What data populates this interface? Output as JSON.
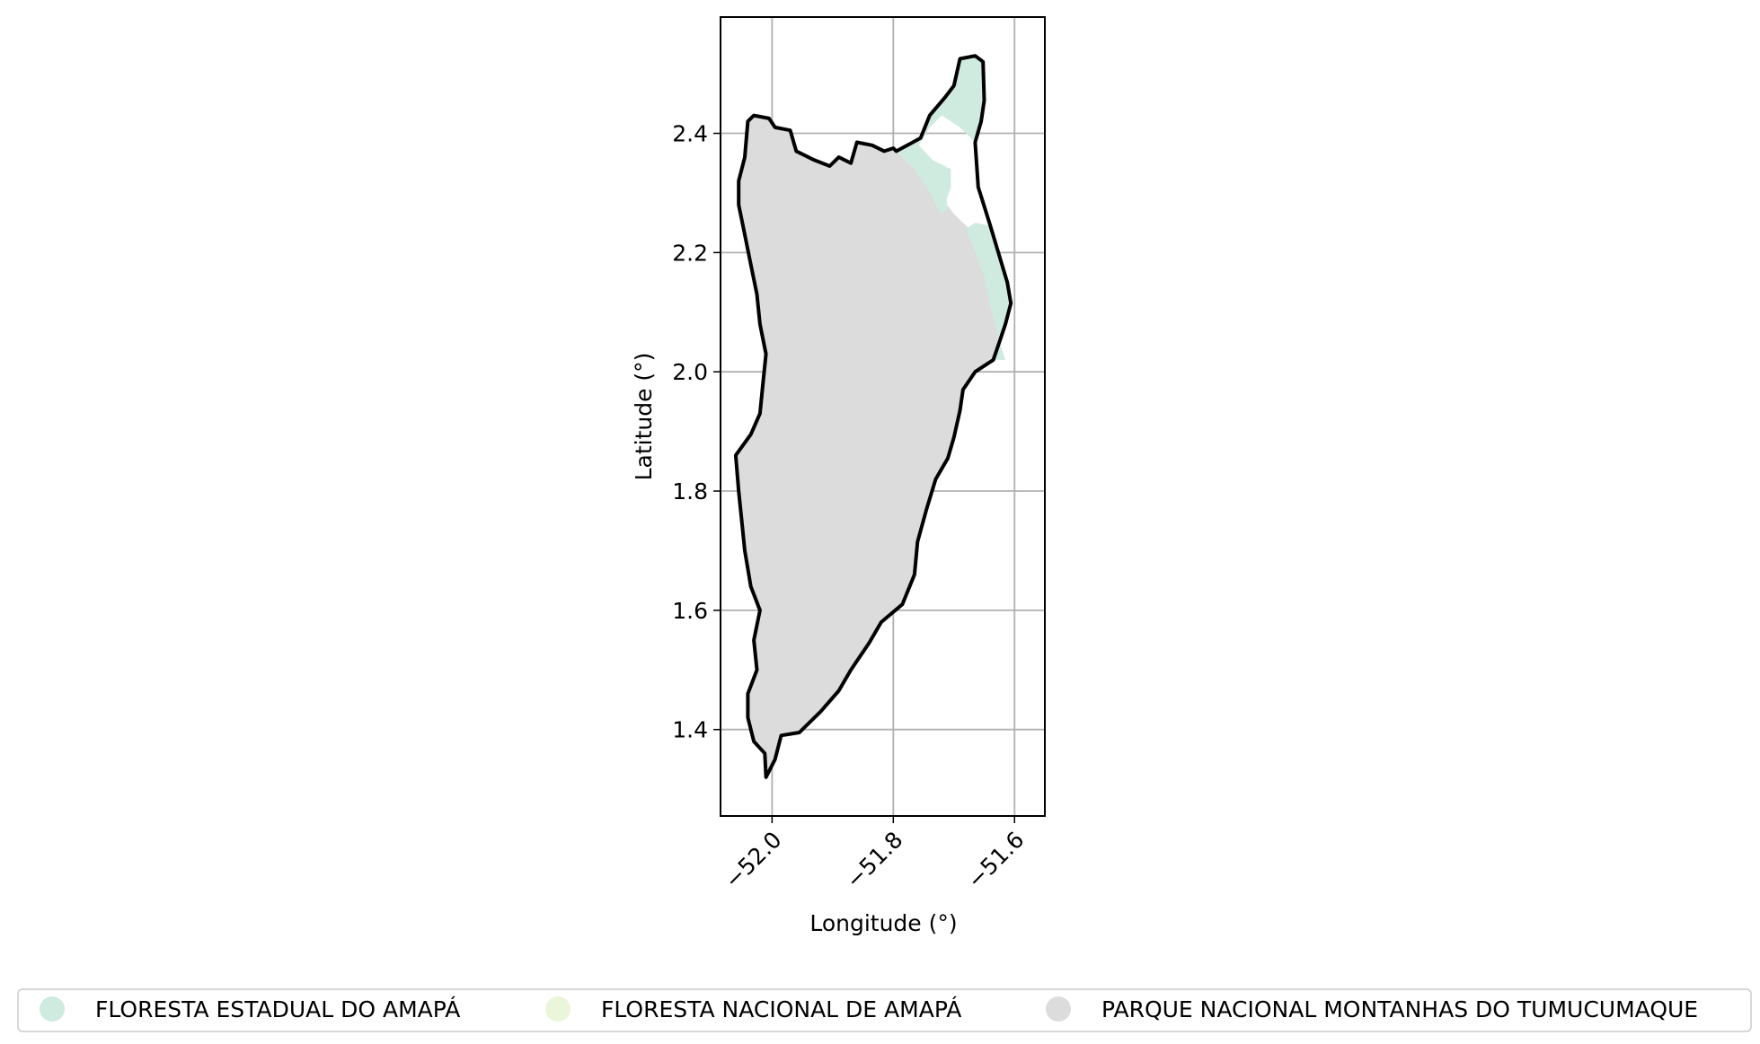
{
  "chart_data": {
    "type": "map",
    "title": "",
    "xlabel": "Longitude (°)",
    "ylabel": "Latitude (°)",
    "xlim": [
      -52.085,
      -51.55
    ],
    "ylim": [
      1.255,
      2.595
    ],
    "x_ticks": [
      {
        "value": -52.0,
        "label": "−52.0"
      },
      {
        "value": -51.8,
        "label": "−51.8"
      },
      {
        "value": -51.6,
        "label": "−51.6"
      }
    ],
    "y_ticks": [
      {
        "value": 1.4,
        "label": "1.4"
      },
      {
        "value": 1.6,
        "label": "1.6"
      },
      {
        "value": 1.8,
        "label": "1.8"
      },
      {
        "value": 2.0,
        "label": "2.0"
      },
      {
        "value": 2.2,
        "label": "2.2"
      },
      {
        "value": 2.4,
        "label": "2.4"
      }
    ],
    "grid": true,
    "legend_position": "bottom",
    "series": [
      {
        "name": "FLORESTA ESTADUAL DO AMAPÁ",
        "color": "#cfeadf",
        "polygons": [
          [
            [
              -51.795,
              2.37
            ],
            [
              -51.755,
              2.392
            ],
            [
              -51.74,
              2.43
            ],
            [
              -51.715,
              2.46
            ],
            [
              -51.7,
              2.48
            ],
            [
              -51.69,
              2.525
            ],
            [
              -51.665,
              2.53
            ],
            [
              -51.652,
              2.52
            ],
            [
              -51.65,
              2.455
            ],
            [
              -51.655,
              2.42
            ],
            [
              -51.665,
              2.385
            ],
            [
              -51.69,
              2.41
            ],
            [
              -51.72,
              2.43
            ],
            [
              -51.74,
              2.41
            ],
            [
              -51.758,
              2.38
            ],
            [
              -51.735,
              2.355
            ],
            [
              -51.705,
              2.34
            ],
            [
              -51.705,
              2.31
            ],
            [
              -51.712,
              2.29
            ],
            [
              -51.71,
              2.272
            ],
            [
              -51.722,
              2.265
            ],
            [
              -51.745,
              2.31
            ],
            [
              -51.77,
              2.345
            ]
          ],
          [
            [
              -51.68,
              2.24
            ],
            [
              -51.665,
              2.25
            ],
            [
              -51.64,
              2.245
            ],
            [
              -51.612,
              2.15
            ],
            [
              -51.606,
              2.115
            ],
            [
              -51.615,
              2.08
            ],
            [
              -51.625,
              2.05
            ],
            [
              -51.635,
              2.02
            ],
            [
              -51.615,
              2.02
            ],
            [
              -51.625,
              2.05
            ],
            [
              -51.64,
              2.11
            ],
            [
              -51.65,
              2.16
            ],
            [
              -51.665,
              2.2
            ]
          ]
        ]
      },
      {
        "name": "FLORESTA NACIONAL DE AMAPÁ",
        "color": "#eaf6d9",
        "polygons": []
      },
      {
        "name": "PARQUE NACIONAL MONTANHAS DO TUMUCUMAQUE",
        "color": "#dcdcdc",
        "polygons": [
          [
            [
              -52.04,
              2.42
            ],
            [
              -52.03,
              2.43
            ],
            [
              -52.005,
              2.425
            ],
            [
              -51.995,
              2.41
            ],
            [
              -51.97,
              2.405
            ],
            [
              -51.96,
              2.37
            ],
            [
              -51.93,
              2.355
            ],
            [
              -51.905,
              2.345
            ],
            [
              -51.89,
              2.36
            ],
            [
              -51.87,
              2.35
            ],
            [
              -51.86,
              2.385
            ],
            [
              -51.835,
              2.38
            ],
            [
              -51.815,
              2.37
            ],
            [
              -51.8,
              2.375
            ],
            [
              -51.795,
              2.37
            ],
            [
              -51.76,
              2.335
            ],
            [
              -51.73,
              2.305
            ],
            [
              -51.7,
              2.265
            ],
            [
              -51.66,
              2.225
            ],
            [
              -51.635,
              2.18
            ],
            [
              -51.62,
              2.12
            ],
            [
              -51.625,
              2.065
            ],
            [
              -51.635,
              2.02
            ],
            [
              -51.665,
              2.0
            ],
            [
              -51.685,
              1.97
            ],
            [
              -51.69,
              1.935
            ],
            [
              -51.7,
              1.89
            ],
            [
              -51.71,
              1.855
            ],
            [
              -51.73,
              1.82
            ],
            [
              -51.745,
              1.77
            ],
            [
              -51.76,
              1.715
            ],
            [
              -51.765,
              1.66
            ],
            [
              -51.785,
              1.61
            ],
            [
              -51.82,
              1.58
            ],
            [
              -51.84,
              1.545
            ],
            [
              -51.87,
              1.5
            ],
            [
              -51.89,
              1.465
            ],
            [
              -51.92,
              1.43
            ],
            [
              -51.955,
              1.395
            ],
            [
              -51.985,
              1.39
            ],
            [
              -51.995,
              1.35
            ],
            [
              -52.01,
              1.32
            ],
            [
              -52.012,
              1.36
            ],
            [
              -52.03,
              1.38
            ],
            [
              -52.04,
              1.42
            ],
            [
              -52.04,
              1.46
            ],
            [
              -52.025,
              1.5
            ],
            [
              -52.03,
              1.55
            ],
            [
              -52.02,
              1.6
            ],
            [
              -52.035,
              1.64
            ],
            [
              -52.045,
              1.7
            ],
            [
              -52.05,
              1.75
            ],
            [
              -52.055,
              1.8
            ],
            [
              -52.06,
              1.86
            ],
            [
              -52.035,
              1.895
            ],
            [
              -52.02,
              1.93
            ],
            [
              -52.015,
              1.98
            ],
            [
              -52.01,
              2.03
            ],
            [
              -52.02,
              2.08
            ],
            [
              -52.025,
              2.13
            ],
            [
              -52.035,
              2.18
            ],
            [
              -52.045,
              2.23
            ],
            [
              -52.055,
              2.28
            ],
            [
              -52.055,
              2.32
            ],
            [
              -52.045,
              2.36
            ]
          ]
        ]
      }
    ],
    "outline": [
      [
        -52.04,
        2.42
      ],
      [
        -52.03,
        2.43
      ],
      [
        -52.005,
        2.425
      ],
      [
        -51.995,
        2.41
      ],
      [
        -51.97,
        2.405
      ],
      [
        -51.96,
        2.37
      ],
      [
        -51.93,
        2.355
      ],
      [
        -51.905,
        2.345
      ],
      [
        -51.89,
        2.36
      ],
      [
        -51.87,
        2.35
      ],
      [
        -51.86,
        2.385
      ],
      [
        -51.835,
        2.38
      ],
      [
        -51.815,
        2.37
      ],
      [
        -51.8,
        2.375
      ],
      [
        -51.795,
        2.37
      ],
      [
        -51.755,
        2.392
      ],
      [
        -51.74,
        2.43
      ],
      [
        -51.715,
        2.46
      ],
      [
        -51.7,
        2.48
      ],
      [
        -51.69,
        2.525
      ],
      [
        -51.665,
        2.53
      ],
      [
        -51.652,
        2.52
      ],
      [
        -51.65,
        2.455
      ],
      [
        -51.655,
        2.42
      ],
      [
        -51.665,
        2.385
      ],
      [
        -51.66,
        2.31
      ],
      [
        -51.64,
        2.245
      ],
      [
        -51.612,
        2.15
      ],
      [
        -51.606,
        2.115
      ],
      [
        -51.615,
        2.08
      ],
      [
        -51.625,
        2.05
      ],
      [
        -51.635,
        2.02
      ],
      [
        -51.665,
        2.0
      ],
      [
        -51.685,
        1.97
      ],
      [
        -51.69,
        1.935
      ],
      [
        -51.7,
        1.89
      ],
      [
        -51.71,
        1.855
      ],
      [
        -51.73,
        1.82
      ],
      [
        -51.745,
        1.77
      ],
      [
        -51.76,
        1.715
      ],
      [
        -51.765,
        1.66
      ],
      [
        -51.785,
        1.61
      ],
      [
        -51.82,
        1.58
      ],
      [
        -51.84,
        1.545
      ],
      [
        -51.87,
        1.5
      ],
      [
        -51.89,
        1.465
      ],
      [
        -51.92,
        1.43
      ],
      [
        -51.955,
        1.395
      ],
      [
        -51.985,
        1.39
      ],
      [
        -51.995,
        1.35
      ],
      [
        -52.01,
        1.32
      ],
      [
        -52.012,
        1.36
      ],
      [
        -52.03,
        1.38
      ],
      [
        -52.04,
        1.42
      ],
      [
        -52.04,
        1.46
      ],
      [
        -52.025,
        1.5
      ],
      [
        -52.03,
        1.55
      ],
      [
        -52.02,
        1.6
      ],
      [
        -52.035,
        1.64
      ],
      [
        -52.045,
        1.7
      ],
      [
        -52.05,
        1.75
      ],
      [
        -52.055,
        1.8
      ],
      [
        -52.06,
        1.86
      ],
      [
        -52.035,
        1.895
      ],
      [
        -52.02,
        1.93
      ],
      [
        -52.015,
        1.98
      ],
      [
        -52.01,
        2.03
      ],
      [
        -52.02,
        2.08
      ],
      [
        -52.025,
        2.13
      ],
      [
        -52.035,
        2.18
      ],
      [
        -52.045,
        2.23
      ],
      [
        -52.055,
        2.28
      ],
      [
        -52.055,
        2.32
      ],
      [
        -52.045,
        2.36
      ]
    ]
  }
}
